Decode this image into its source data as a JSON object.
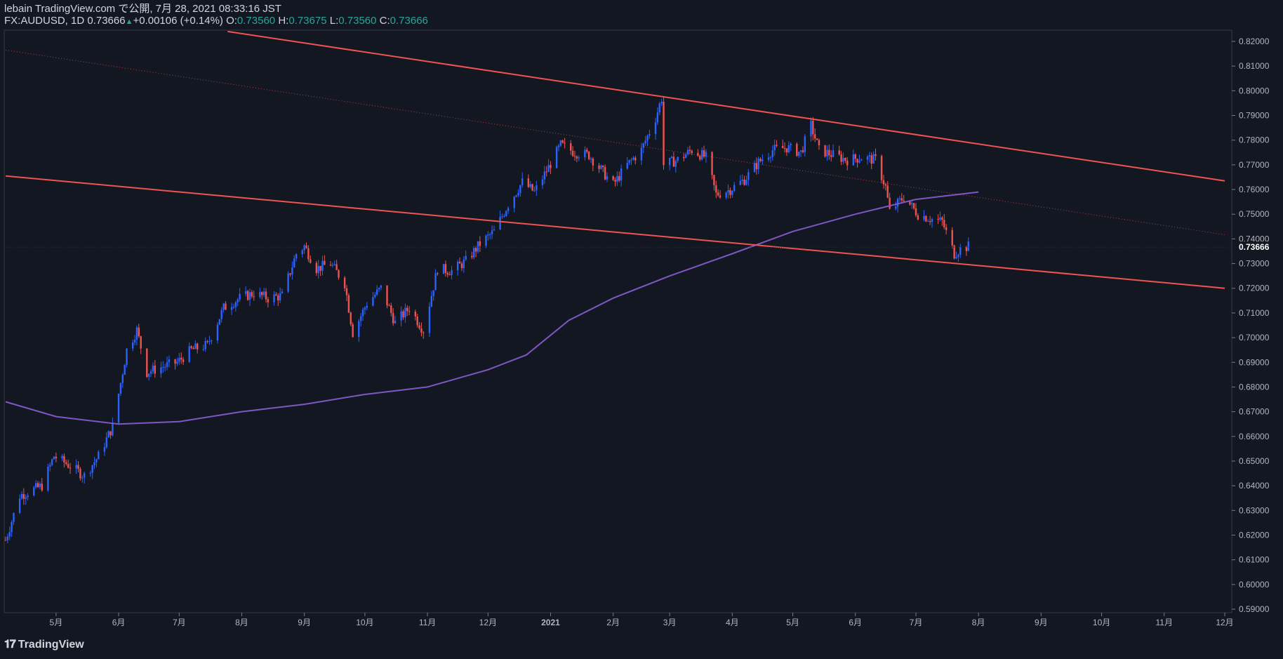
{
  "header": {
    "publish_line": "lebain TradingView.com で公開, 7月 28, 2021 08:33:16 JST",
    "symbol_line": "FX:AUDUSD, 1D 0.73666",
    "change": "+0.00106 (+0.14%)",
    "open_label": "O:",
    "open_value": "0.73560",
    "high_label": "H:",
    "high_value": "0.73675",
    "low_label": "L:",
    "low_value": "0.73560",
    "close_label": "C:",
    "close_value": "0.73666"
  },
  "logo": {
    "text": "TradingView",
    "icon": "tradingview-logo-icon"
  },
  "colors": {
    "background": "#131722",
    "up": "#2962ff",
    "down": "#ef5350",
    "channel": "#f05350",
    "ma": "#7e57c2",
    "accent": "#26a69a",
    "text": "#d1d4dc"
  },
  "chart_data": {
    "type": "candlestick",
    "symbol": "FX:AUDUSD",
    "interval": "1D",
    "last_price": "0.73666",
    "last_price_value": 0.73666,
    "ylim": [
      0.5865,
      0.8235
    ],
    "y_ticks": [
      "0.59000",
      "0.60000",
      "0.61000",
      "0.62000",
      "0.63000",
      "0.64000",
      "0.65000",
      "0.66000",
      "0.67000",
      "0.68000",
      "0.69000",
      "0.70000",
      "0.71000",
      "0.72000",
      "0.73000",
      "0.74000",
      "0.75000",
      "0.76000",
      "0.77000",
      "0.78000",
      "0.79000",
      "0.80000",
      "0.81000",
      "0.82000"
    ],
    "x_ticks": [
      "5月",
      "6月",
      "7月",
      "8月",
      "9月",
      "10月",
      "11月",
      "12月",
      "2021",
      "2月",
      "3月",
      "4月",
      "5月",
      "6月",
      "7月",
      "8月",
      "9月",
      "10月",
      "11月",
      "12月"
    ],
    "x_tick_dates": [
      "2020-05-01",
      "2020-06-01",
      "2020-07-01",
      "2020-08-01",
      "2020-09-01",
      "2020-10-01",
      "2020-11-01",
      "2020-12-01",
      "2021-01-01",
      "2021-02-01",
      "2021-03-01",
      "2021-04-01",
      "2021-05-01",
      "2021-06-01",
      "2021-07-01",
      "2021-08-01",
      "2021-09-01",
      "2021-10-01",
      "2021-11-01",
      "2021-12-01"
    ],
    "x_start": "2020-04-06",
    "x_end": "2021-12-01",
    "price_path": [
      [
        "2020-04-06",
        0.618
      ],
      [
        "2020-04-13",
        0.636
      ],
      [
        "2020-04-24",
        0.64
      ],
      [
        "2020-04-30",
        0.652
      ],
      [
        "2020-05-08",
        0.648
      ],
      [
        "2020-05-15",
        0.644
      ],
      [
        "2020-05-22",
        0.652
      ],
      [
        "2020-05-29",
        0.664
      ],
      [
        "2020-06-05",
        0.695
      ],
      [
        "2020-06-10",
        0.703
      ],
      [
        "2020-06-15",
        0.686
      ],
      [
        "2020-06-22",
        0.688
      ],
      [
        "2020-06-30",
        0.69
      ],
      [
        "2020-07-07",
        0.695
      ],
      [
        "2020-07-15",
        0.697
      ],
      [
        "2020-07-23",
        0.712
      ],
      [
        "2020-07-31",
        0.716
      ],
      [
        "2020-08-07",
        0.718
      ],
      [
        "2020-08-14",
        0.716
      ],
      [
        "2020-08-21",
        0.717
      ],
      [
        "2020-08-28",
        0.734
      ],
      [
        "2020-09-01",
        0.737
      ],
      [
        "2020-09-07",
        0.728
      ],
      [
        "2020-09-14",
        0.73
      ],
      [
        "2020-09-21",
        0.722
      ],
      [
        "2020-09-25",
        0.702
      ],
      [
        "2020-10-02",
        0.714
      ],
      [
        "2020-10-09",
        0.72
      ],
      [
        "2020-10-16",
        0.706
      ],
      [
        "2020-10-23",
        0.712
      ],
      [
        "2020-10-30",
        0.703
      ],
      [
        "2020-11-06",
        0.728
      ],
      [
        "2020-11-13",
        0.727
      ],
      [
        "2020-11-20",
        0.731
      ],
      [
        "2020-11-27",
        0.738
      ],
      [
        "2020-12-04",
        0.743
      ],
      [
        "2020-12-11",
        0.754
      ],
      [
        "2020-12-18",
        0.763
      ],
      [
        "2020-12-24",
        0.759
      ],
      [
        "2020-12-31",
        0.769
      ],
      [
        "2021-01-06",
        0.778
      ],
      [
        "2021-01-13",
        0.775
      ],
      [
        "2021-01-20",
        0.774
      ],
      [
        "2021-01-27",
        0.767
      ],
      [
        "2021-02-01",
        0.762
      ],
      [
        "2021-02-08",
        0.77
      ],
      [
        "2021-02-15",
        0.776
      ],
      [
        "2021-02-22",
        0.789
      ],
      [
        "2021-02-25",
        0.797
      ],
      [
        "2021-02-26",
        0.77
      ],
      [
        "2021-03-05",
        0.772
      ],
      [
        "2021-03-12",
        0.776
      ],
      [
        "2021-03-19",
        0.773
      ],
      [
        "2021-03-24",
        0.758
      ],
      [
        "2021-03-31",
        0.76
      ],
      [
        "2021-04-07",
        0.764
      ],
      [
        "2021-04-14",
        0.771
      ],
      [
        "2021-04-21",
        0.776
      ],
      [
        "2021-04-28",
        0.777
      ],
      [
        "2021-05-05",
        0.775
      ],
      [
        "2021-05-10",
        0.786
      ],
      [
        "2021-05-14",
        0.776
      ],
      [
        "2021-05-21",
        0.774
      ],
      [
        "2021-05-28",
        0.772
      ],
      [
        "2021-06-04",
        0.773
      ],
      [
        "2021-06-11",
        0.772
      ],
      [
        "2021-06-16",
        0.761
      ],
      [
        "2021-06-18",
        0.751
      ],
      [
        "2021-06-25",
        0.757
      ],
      [
        "2021-07-02",
        0.75
      ],
      [
        "2021-07-09",
        0.748
      ],
      [
        "2021-07-14",
        0.747
      ],
      [
        "2021-07-20",
        0.734
      ],
      [
        "2021-07-23",
        0.736
      ],
      [
        "2021-07-27",
        0.737
      ]
    ],
    "ma_path": [
      [
        "2020-04-06",
        0.674
      ],
      [
        "2020-05-01",
        0.668
      ],
      [
        "2020-06-01",
        0.665
      ],
      [
        "2020-07-01",
        0.666
      ],
      [
        "2020-08-01",
        0.67
      ],
      [
        "2020-09-01",
        0.673
      ],
      [
        "2020-10-01",
        0.677
      ],
      [
        "2020-11-01",
        0.68
      ],
      [
        "2020-12-01",
        0.687
      ],
      [
        "2020-12-20",
        0.693
      ],
      [
        "2021-01-10",
        0.707
      ],
      [
        "2021-02-01",
        0.716
      ],
      [
        "2021-03-01",
        0.725
      ],
      [
        "2021-04-01",
        0.734
      ],
      [
        "2021-05-01",
        0.743
      ],
      [
        "2021-06-01",
        0.75
      ],
      [
        "2021-07-01",
        0.756
      ],
      [
        "2021-08-01",
        0.759
      ]
    ],
    "channel_upper": [
      [
        "2020-07-25",
        0.824
      ],
      [
        "2021-12-01",
        0.7635
      ]
    ],
    "channel_lower": [
      [
        "2020-04-06",
        0.7655
      ],
      [
        "2021-12-01",
        0.72
      ]
    ],
    "channel_mid_dotted": [
      [
        "2020-04-06",
        0.8165
      ],
      [
        "2021-12-01",
        0.7417
      ]
    ]
  }
}
